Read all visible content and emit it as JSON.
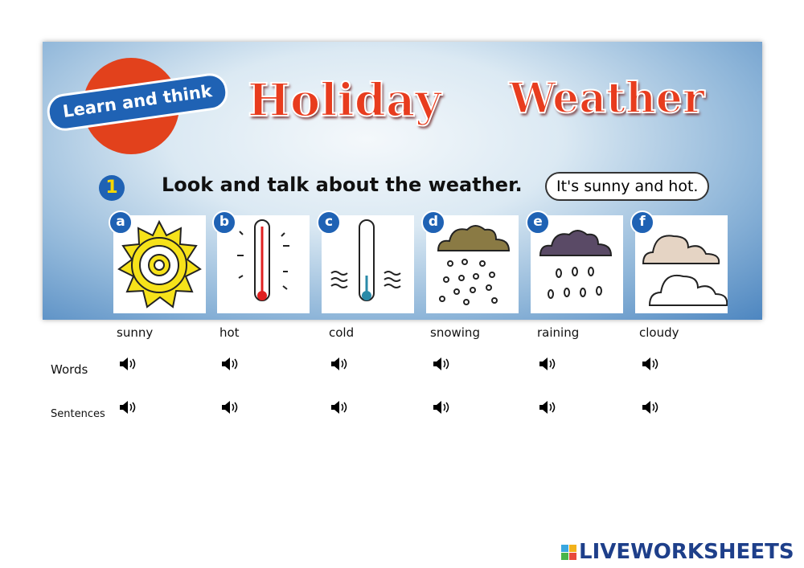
{
  "banner": {
    "badge": "Learn and think",
    "title_word1": "Holiday",
    "title_word2": "Weather",
    "exercise_number": "1",
    "instruction": "Look and talk about the weather.",
    "speech_bubble": "It's sunny and hot."
  },
  "pictures": [
    {
      "letter": "a",
      "icon": "sun-icon"
    },
    {
      "letter": "b",
      "icon": "hot-thermometer-icon"
    },
    {
      "letter": "c",
      "icon": "cold-thermometer-icon"
    },
    {
      "letter": "d",
      "icon": "snow-cloud-icon"
    },
    {
      "letter": "e",
      "icon": "rain-cloud-icon"
    },
    {
      "letter": "f",
      "icon": "cloudy-icon"
    }
  ],
  "words": [
    "sunny",
    "hot",
    "cold",
    "snowing",
    "raining",
    "cloudy"
  ],
  "rows": {
    "words": "Words",
    "sentences": "Sentences"
  },
  "audio_icon": "speaker-icon",
  "footer": {
    "logo": "LIVEWORKSHEETS"
  }
}
